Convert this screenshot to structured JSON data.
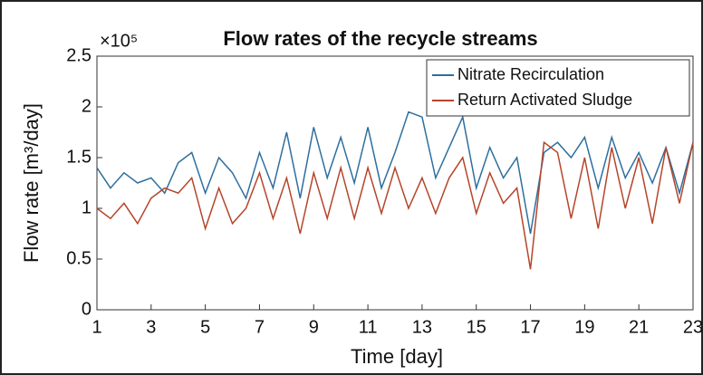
{
  "chart_data": {
    "type": "line",
    "title": "Flow rates of the recycle streams",
    "x_label": "Time [day]",
    "y_label": "Flow rate [m³/day]",
    "y_exponent": "×10⁵",
    "x": [
      1,
      1.5,
      2,
      2.5,
      3,
      3.5,
      4,
      4.5,
      5,
      5.5,
      6,
      6.5,
      7,
      7.5,
      8,
      8.5,
      9,
      9.5,
      10,
      10.5,
      11,
      11.5,
      12,
      12.5,
      13,
      13.5,
      14,
      14.5,
      15,
      15.5,
      16,
      16.5,
      17,
      17.5,
      18,
      18.5,
      19,
      19.5,
      20,
      20.5,
      21,
      21.5,
      22,
      22.5,
      23
    ],
    "series": [
      {
        "name": "Nitrate Recirculation",
        "color": "#2e6f9e",
        "values": [
          1.4,
          1.2,
          1.35,
          1.25,
          1.3,
          1.15,
          1.45,
          1.55,
          1.15,
          1.5,
          1.35,
          1.1,
          1.55,
          1.2,
          1.75,
          1.1,
          1.8,
          1.3,
          1.7,
          1.25,
          1.8,
          1.2,
          1.55,
          1.95,
          1.9,
          1.3,
          1.6,
          1.9,
          1.2,
          1.6,
          1.3,
          1.5,
          0.75,
          1.55,
          1.65,
          1.5,
          1.7,
          1.2,
          1.7,
          1.3,
          1.55,
          1.25,
          1.6,
          1.15,
          1.65
        ]
      },
      {
        "name": "Return Activated Sludge",
        "color": "#b5452a",
        "values": [
          1.0,
          0.9,
          1.05,
          0.85,
          1.1,
          1.2,
          1.15,
          1.3,
          0.8,
          1.2,
          0.85,
          1.0,
          1.35,
          0.9,
          1.3,
          0.75,
          1.35,
          0.9,
          1.4,
          0.9,
          1.4,
          0.95,
          1.4,
          1.0,
          1.3,
          0.95,
          1.3,
          1.5,
          0.95,
          1.35,
          1.05,
          1.2,
          0.4,
          1.65,
          1.55,
          0.9,
          1.5,
          0.8,
          1.6,
          1.0,
          1.5,
          0.85,
          1.6,
          1.05,
          1.65
        ]
      }
    ],
    "xlim": [
      1,
      23
    ],
    "xticks": [
      1,
      3,
      5,
      7,
      9,
      11,
      13,
      15,
      17,
      19,
      21,
      23
    ],
    "ylim": [
      0,
      2.5
    ],
    "yticks": [
      0,
      0.5,
      1,
      1.5,
      2,
      2.5
    ],
    "legend": "upper right"
  }
}
